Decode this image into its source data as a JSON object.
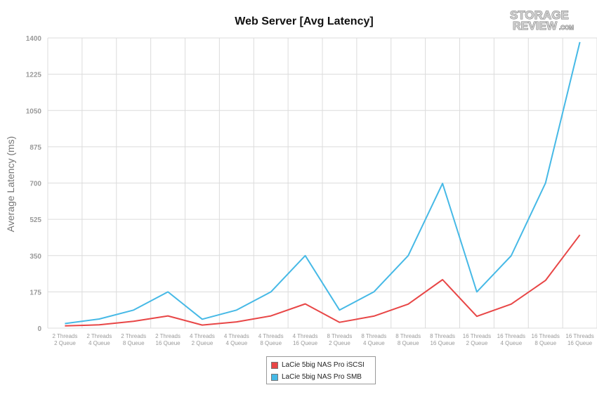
{
  "logo": {
    "line1": "STORAGE",
    "line2": "REVIEW",
    "suffix": ".COM"
  },
  "chart_data": {
    "type": "line",
    "title": "Web Server [Avg Latency]",
    "xlabel": "",
    "ylabel": "Average Latency (ms)",
    "ylim": [
      0,
      1400
    ],
    "yticks": [
      "0",
      "175",
      "350",
      "525",
      "700",
      "875",
      "1050",
      "1225",
      "1400"
    ],
    "grid": true,
    "legend_position": "bottom-center",
    "categories": [
      [
        "2 Threads",
        "2 Queue"
      ],
      [
        "2 Threads",
        "4 Queue"
      ],
      [
        "2 Threads",
        "8 Queue"
      ],
      [
        "2 Threads",
        "16 Queue"
      ],
      [
        "4 Threads",
        "2 Queue"
      ],
      [
        "4 Threads",
        "4 Queue"
      ],
      [
        "4 Threads",
        "8 Queue"
      ],
      [
        "4 Threads",
        "16 Queue"
      ],
      [
        "8 Threads",
        "2 Queue"
      ],
      [
        "8 Threads",
        "4 Queue"
      ],
      [
        "8 Threads",
        "8 Queue"
      ],
      [
        "8 Threads",
        "16 Queue"
      ],
      [
        "16 Threads",
        "2 Queue"
      ],
      [
        "16 Threads",
        "4 Queue"
      ],
      [
        "16 Threads",
        "8 Queue"
      ],
      [
        "16 Threads",
        "16 Queue"
      ]
    ],
    "series": [
      {
        "name": "LaCie 5big NAS Pro iSCSI",
        "color": "#e84646",
        "values": [
          11,
          16,
          33,
          59,
          15,
          30,
          59,
          117,
          28,
          58,
          116,
          234,
          57,
          116,
          230,
          450
        ]
      },
      {
        "name": "LaCie 5big NAS Pro SMB",
        "color": "#46b9e6",
        "values": [
          22,
          44,
          87,
          175,
          43,
          87,
          175,
          350,
          87,
          175,
          350,
          698,
          175,
          349,
          700,
          1380
        ]
      }
    ]
  }
}
